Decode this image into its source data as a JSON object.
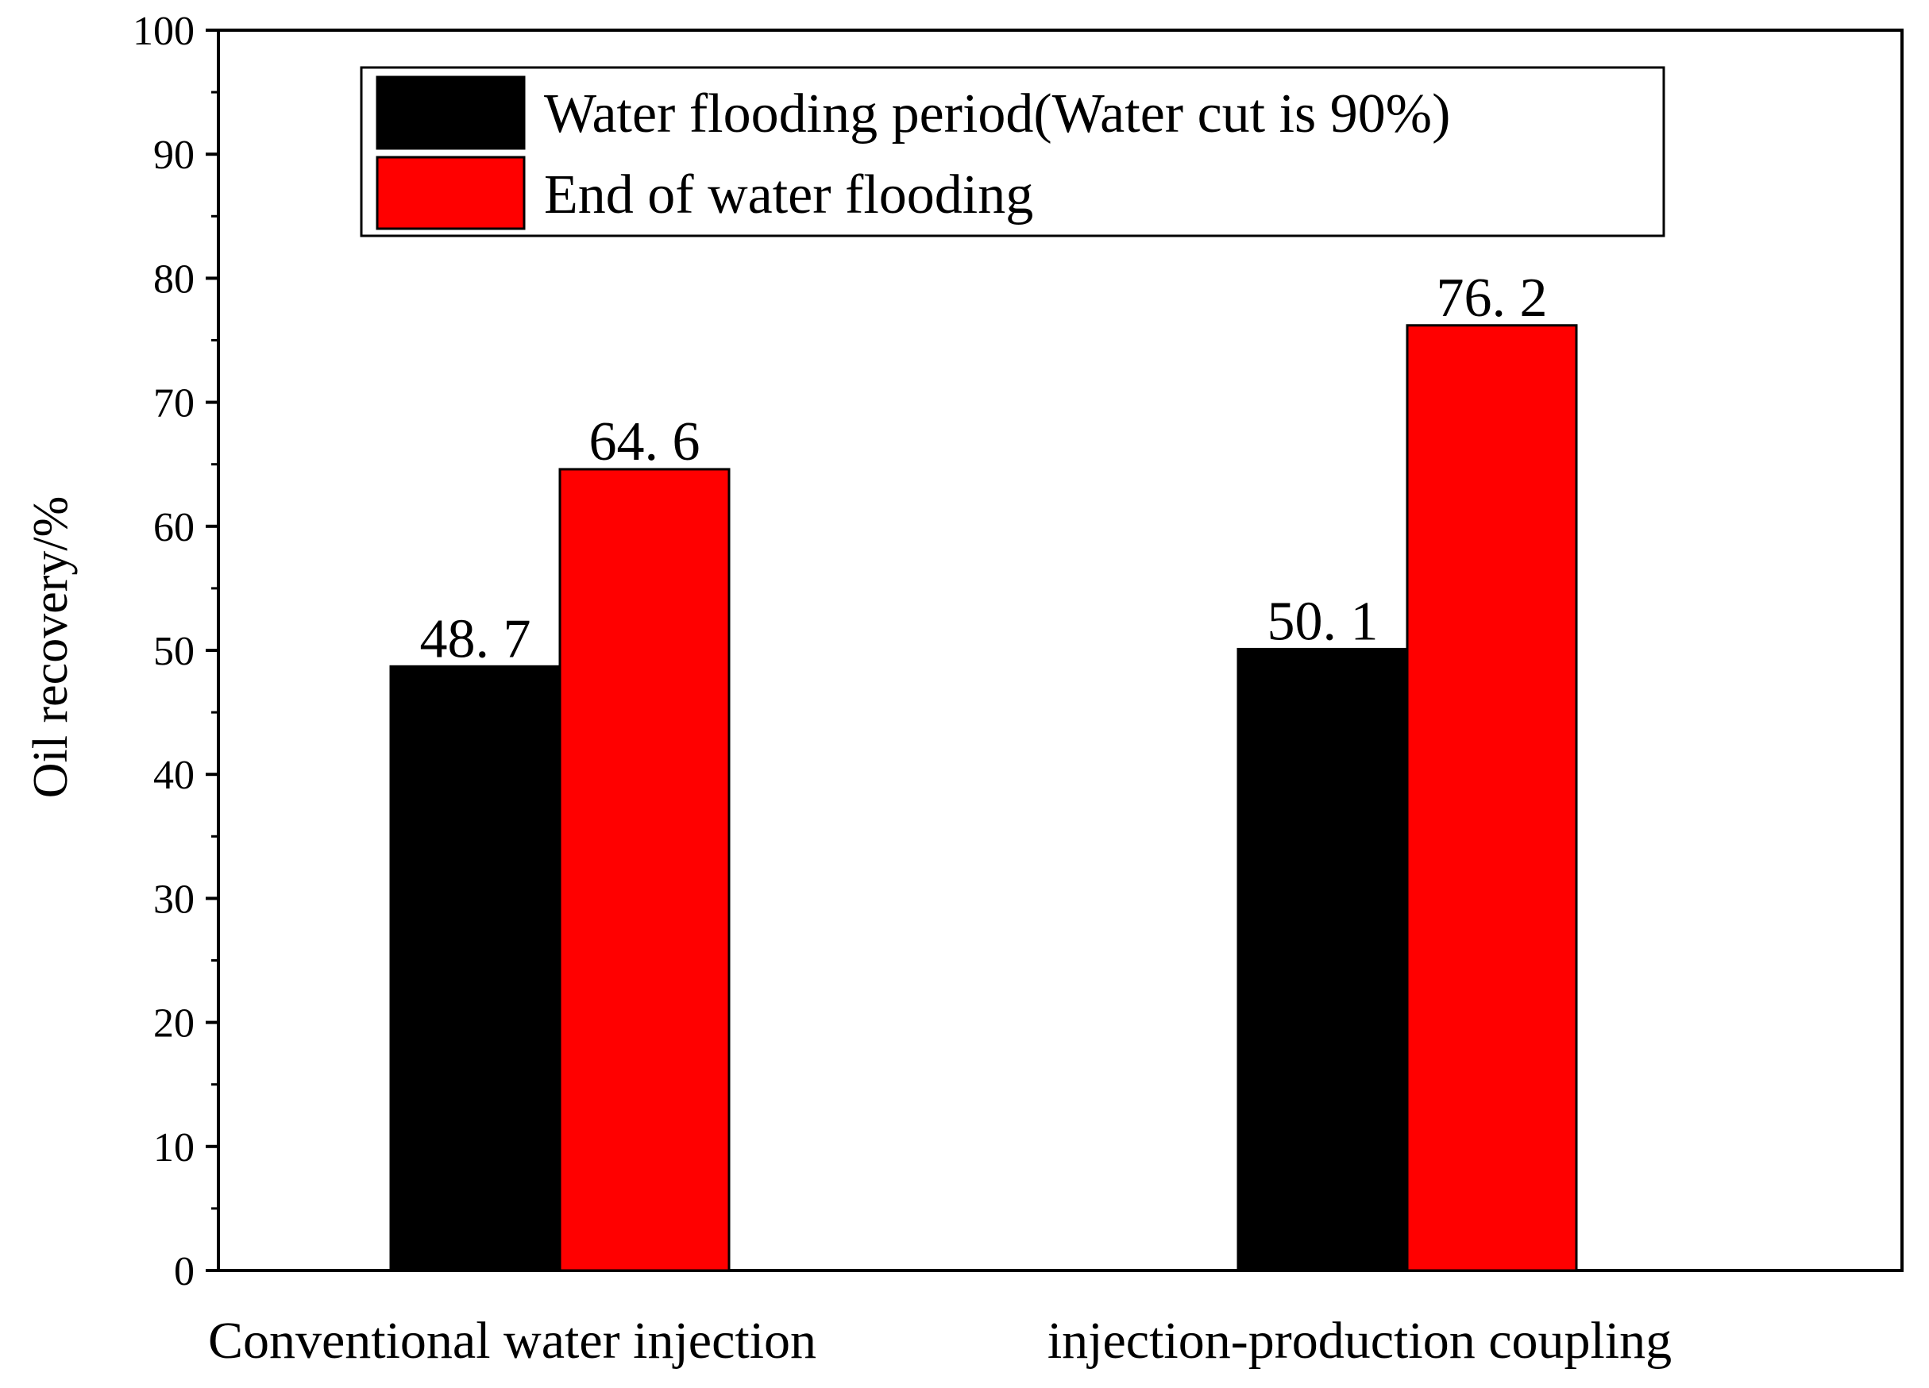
{
  "chart_data": {
    "type": "bar",
    "title": "",
    "xlabel": "",
    "ylabel": "Oil recovery/%",
    "ylim": [
      0,
      100
    ],
    "yticks": [
      0,
      10,
      20,
      30,
      40,
      50,
      60,
      70,
      80,
      90,
      100
    ],
    "categories": [
      "Conventional water injection",
      "injection-production coupling"
    ],
    "series": [
      {
        "name": "Water flooding period(Water cut is 90%)",
        "color": "#000000",
        "values": [
          48.7,
          50.1
        ],
        "labels": [
          "48. 7",
          "50. 1"
        ]
      },
      {
        "name": "End of water flooding",
        "color": "#ff0000",
        "values": [
          64.6,
          76.2
        ],
        "labels": [
          "64. 6",
          "76. 2"
        ]
      }
    ],
    "legend_position": "top"
  }
}
